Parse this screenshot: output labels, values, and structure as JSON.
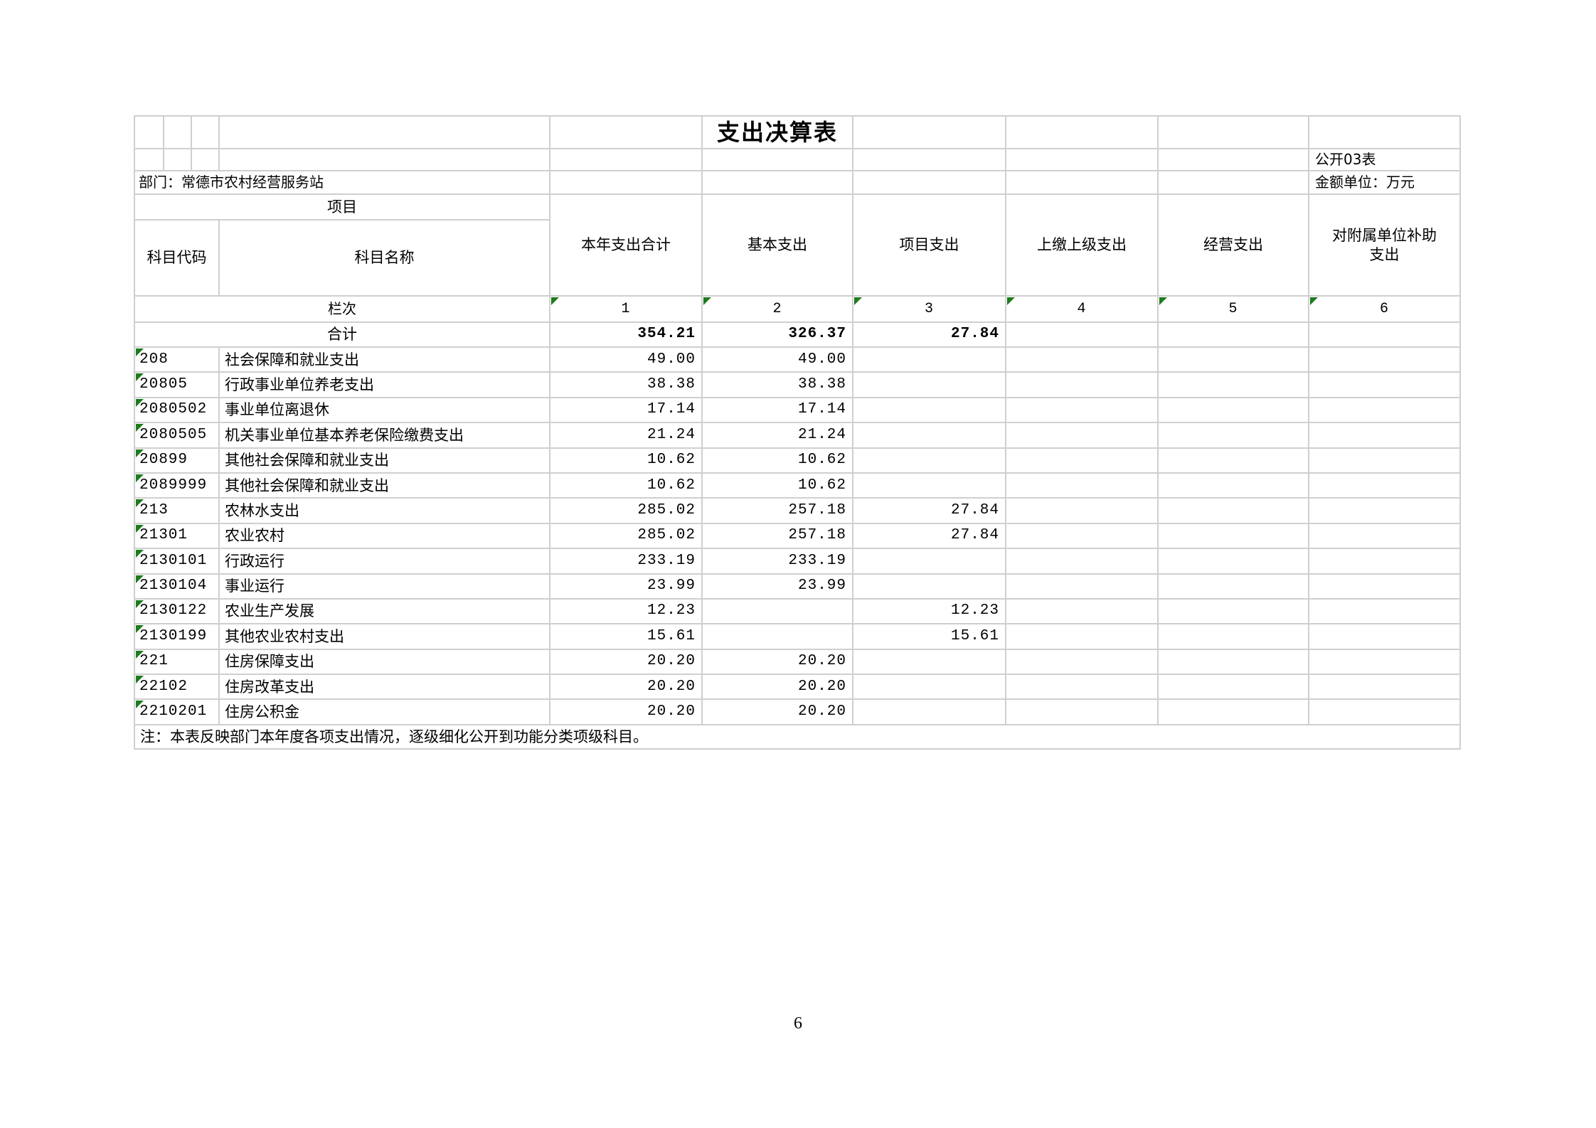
{
  "title": "支出决算表",
  "meta": {
    "sheet_label": "公开03表",
    "unit_label": "金额单位：万元",
    "department_label": "部门：常德市农村经营服务站"
  },
  "header": {
    "project_label": "项目",
    "code_label": "科目代码",
    "name_label": "科目名称",
    "columns": [
      "本年支出合计",
      "基本支出",
      "项目支出",
      "上缴上级支出",
      "经营支出",
      "对附属单位补助支出"
    ],
    "lanci_label": "栏次",
    "column_indices": [
      "1",
      "2",
      "3",
      "4",
      "5",
      "6"
    ]
  },
  "table": {
    "total_row": {
      "label": "合计",
      "values": [
        "354.21",
        "326.37",
        "27.84",
        "",
        "",
        ""
      ]
    },
    "rows": [
      {
        "code": "208",
        "name": "社会保障和就业支出",
        "values": [
          "49.00",
          "49.00",
          "",
          "",
          "",
          ""
        ]
      },
      {
        "code": "20805",
        "name": "行政事业单位养老支出",
        "values": [
          "38.38",
          "38.38",
          "",
          "",
          "",
          ""
        ]
      },
      {
        "code": "2080502",
        "name": "事业单位离退休",
        "values": [
          "17.14",
          "17.14",
          "",
          "",
          "",
          ""
        ]
      },
      {
        "code": "2080505",
        "name": "机关事业单位基本养老保险缴费支出",
        "values": [
          "21.24",
          "21.24",
          "",
          "",
          "",
          ""
        ]
      },
      {
        "code": "20899",
        "name": "其他社会保障和就业支出",
        "values": [
          "10.62",
          "10.62",
          "",
          "",
          "",
          ""
        ]
      },
      {
        "code": "2089999",
        "name": "其他社会保障和就业支出",
        "values": [
          "10.62",
          "10.62",
          "",
          "",
          "",
          ""
        ]
      },
      {
        "code": "213",
        "name": "农林水支出",
        "values": [
          "285.02",
          "257.18",
          "27.84",
          "",
          "",
          ""
        ]
      },
      {
        "code": "21301",
        "name": "农业农村",
        "values": [
          "285.02",
          "257.18",
          "27.84",
          "",
          "",
          ""
        ]
      },
      {
        "code": "2130101",
        "name": "行政运行",
        "values": [
          "233.19",
          "233.19",
          "",
          "",
          "",
          ""
        ]
      },
      {
        "code": "2130104",
        "name": "事业运行",
        "values": [
          "23.99",
          "23.99",
          "",
          "",
          "",
          ""
        ]
      },
      {
        "code": "2130122",
        "name": "农业生产发展",
        "values": [
          "12.23",
          "",
          "12.23",
          "",
          "",
          ""
        ]
      },
      {
        "code": "2130199",
        "name": "其他农业农村支出",
        "values": [
          "15.61",
          "",
          "15.61",
          "",
          "",
          ""
        ]
      },
      {
        "code": "221",
        "name": "住房保障支出",
        "values": [
          "20.20",
          "20.20",
          "",
          "",
          "",
          ""
        ]
      },
      {
        "code": "22102",
        "name": "住房改革支出",
        "values": [
          "20.20",
          "20.20",
          "",
          "",
          "",
          ""
        ]
      },
      {
        "code": "2210201",
        "name": "住房公积金",
        "values": [
          "20.20",
          "20.20",
          "",
          "",
          "",
          ""
        ]
      }
    ]
  },
  "note": "注：本表反映部门本年度各项支出情况，逐级细化公开到功能分类项级科目。",
  "page": {
    "number": "6"
  },
  "colors": {
    "grid": "#cfcfcf",
    "flag_green": "#1e7b1e"
  }
}
